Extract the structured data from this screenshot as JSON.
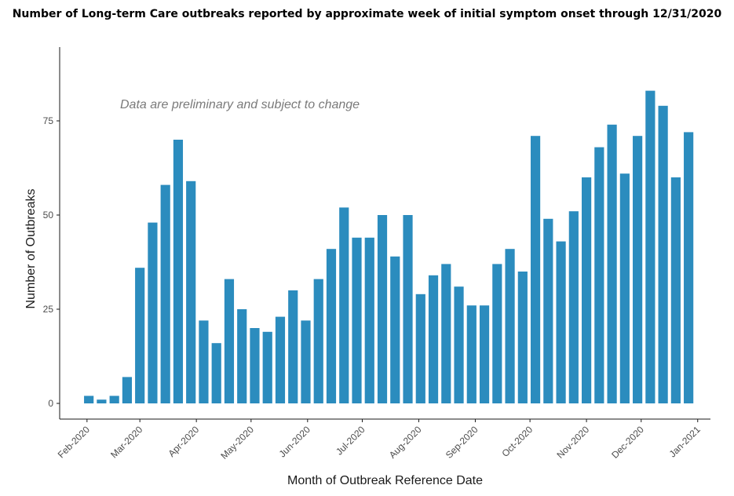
{
  "chart_data": {
    "type": "bar",
    "title": "Number of Long-term Care outbreaks reported by approximate week of initial symptom onset through 12/31/2020",
    "xlabel": "Month of Outbreak Reference Date",
    "ylabel": "Number of Outbreaks",
    "annotation": "Data are preliminary and subject to change",
    "color": "#2b8cbe",
    "ylim": [
      0,
      88
    ],
    "y_ticks": [
      0,
      25,
      50,
      75
    ],
    "x_ticks": [
      "Feb-2020",
      "Mar-2020",
      "Apr-2020",
      "May-2020",
      "Jun-2020",
      "Jul-2020",
      "Aug-2020",
      "Sep-2020",
      "Oct-2020",
      "Nov-2020",
      "Dec-2020",
      "Jan-2021"
    ],
    "x_tick_dates": [
      "2020-02-01",
      "2020-03-01",
      "2020-04-01",
      "2020-05-01",
      "2020-06-01",
      "2020-07-01",
      "2020-08-01",
      "2020-09-01",
      "2020-10-01",
      "2020-11-01",
      "2020-12-01",
      "2021-01-01"
    ],
    "x_range": [
      "2020-01-17",
      "2021-01-08"
    ],
    "weeks": [
      "2020-02-02",
      "2020-02-09",
      "2020-02-16",
      "2020-02-23",
      "2020-03-01",
      "2020-03-08",
      "2020-03-15",
      "2020-03-22",
      "2020-03-29",
      "2020-04-05",
      "2020-04-12",
      "2020-04-19",
      "2020-04-26",
      "2020-05-03",
      "2020-05-10",
      "2020-05-17",
      "2020-05-24",
      "2020-05-31",
      "2020-06-07",
      "2020-06-14",
      "2020-06-21",
      "2020-06-28",
      "2020-07-05",
      "2020-07-12",
      "2020-07-19",
      "2020-07-26",
      "2020-08-02",
      "2020-08-09",
      "2020-08-16",
      "2020-08-23",
      "2020-08-30",
      "2020-09-06",
      "2020-09-13",
      "2020-09-20",
      "2020-09-27",
      "2020-10-04",
      "2020-10-11",
      "2020-10-18",
      "2020-10-25",
      "2020-11-01",
      "2020-11-08",
      "2020-11-15",
      "2020-11-22",
      "2020-11-29",
      "2020-12-06",
      "2020-12-13",
      "2020-12-20",
      "2020-12-27"
    ],
    "values": [
      2,
      1,
      2,
      7,
      36,
      48,
      58,
      70,
      59,
      22,
      16,
      33,
      25,
      20,
      19,
      23,
      30,
      22,
      33,
      41,
      52,
      44,
      44,
      50,
      39,
      50,
      29,
      34,
      37,
      31,
      26,
      26,
      37,
      41,
      35,
      71,
      49,
      43,
      51,
      60,
      68,
      74,
      61,
      71,
      83,
      79,
      60,
      72
    ],
    "grid": false,
    "legend": "none"
  }
}
